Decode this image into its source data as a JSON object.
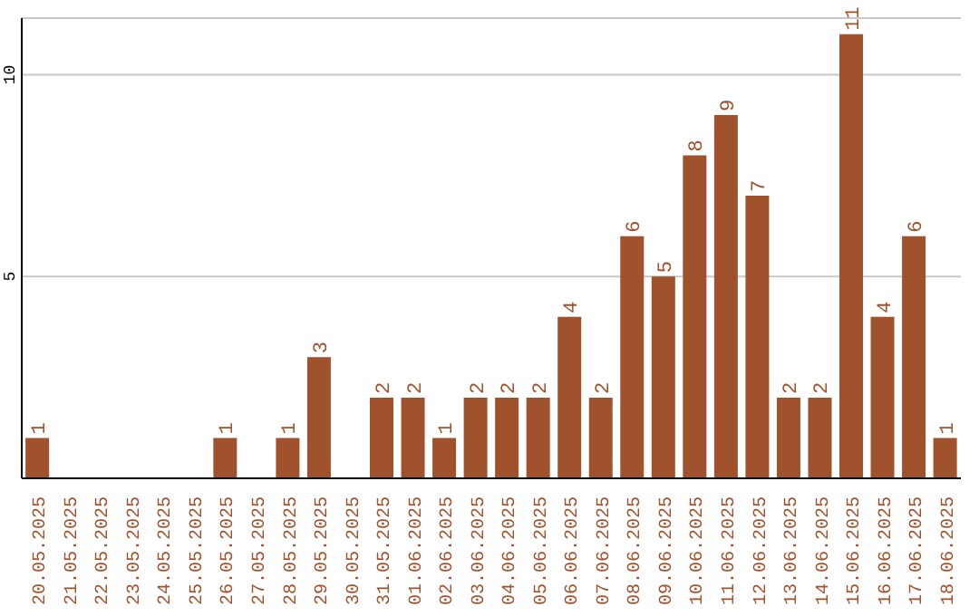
{
  "chart_data": {
    "type": "bar",
    "categories": [
      "20.05.2025",
      "21.05.2025",
      "22.05.2025",
      "23.05.2025",
      "24.05.2025",
      "25.05.2025",
      "26.05.2025",
      "27.05.2025",
      "28.05.2025",
      "29.05.2025",
      "30.05.2025",
      "31.05.2025",
      "01.06.2025",
      "02.06.2025",
      "03.06.2025",
      "04.06.2025",
      "05.06.2025",
      "06.06.2025",
      "07.06.2025",
      "08.06.2025",
      "09.06.2025",
      "10.06.2025",
      "11.06.2025",
      "12.06.2025",
      "13.06.2025",
      "14.06.2025",
      "15.06.2025",
      "16.06.2025",
      "17.06.2025",
      "18.06.2025"
    ],
    "values": [
      1,
      0,
      0,
      0,
      0,
      0,
      1,
      0,
      1,
      3,
      0,
      2,
      2,
      1,
      2,
      2,
      2,
      4,
      2,
      6,
      5,
      8,
      9,
      7,
      2,
      2,
      11,
      4,
      6,
      1
    ],
    "value_labels": [
      "1",
      null,
      null,
      null,
      null,
      null,
      "1",
      null,
      "1",
      "3",
      null,
      "2",
      "2",
      "1",
      "2",
      "2",
      "2",
      "4",
      "2",
      "6",
      "5",
      "8",
      "9",
      "7",
      "2",
      "2",
      "11",
      "4",
      "6",
      "1"
    ],
    "color": "#a0522d",
    "ylim": [
      0,
      11.4
    ],
    "yticks": [
      5,
      10
    ],
    "grid": "y"
  }
}
